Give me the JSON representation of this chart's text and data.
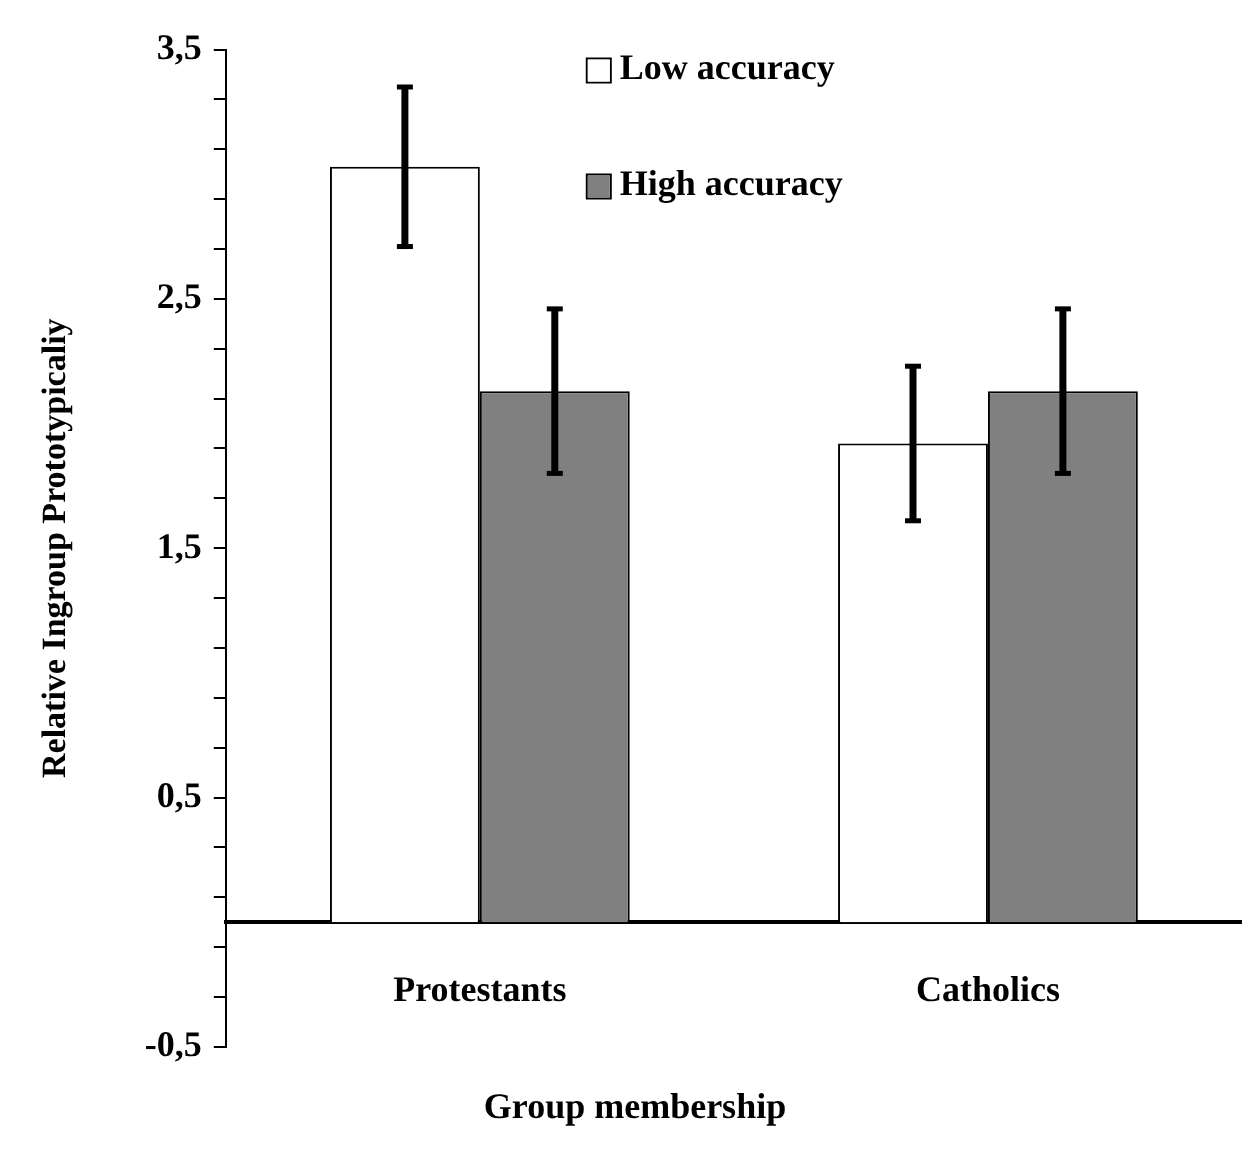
{
  "chart_data": {
    "type": "bar",
    "xlabel": "Group membership",
    "ylabel": "Relative Ingroup Prototypicaliy",
    "categories": [
      "Protestants",
      "Catholics"
    ],
    "series": [
      {
        "name": "Low accuracy",
        "color": "#ffffff",
        "values": [
          3.03,
          1.92
        ],
        "errors": [
          0.32,
          0.31
        ]
      },
      {
        "name": "High accuracy",
        "color": "#808080",
        "values": [
          2.13,
          2.13
        ],
        "errors": [
          0.33,
          0.33
        ]
      }
    ],
    "ylim": [
      -0.5,
      3.5
    ],
    "yticks": [
      {
        "value": -0.5,
        "label": "-0,5"
      },
      {
        "value": -0.3,
        "label": null
      },
      {
        "value": -0.1,
        "label": null
      },
      {
        "value": 0.1,
        "label": null
      },
      {
        "value": 0.3,
        "label": null
      },
      {
        "value": 0.5,
        "label": "0,5"
      },
      {
        "value": 0.7,
        "label": null
      },
      {
        "value": 0.9,
        "label": null
      },
      {
        "value": 1.1,
        "label": null
      },
      {
        "value": 1.3,
        "label": null
      },
      {
        "value": 1.5,
        "label": "1,5"
      },
      {
        "value": 1.7,
        "label": null
      },
      {
        "value": 1.9,
        "label": null
      },
      {
        "value": 2.1,
        "label": null
      },
      {
        "value": 2.3,
        "label": null
      },
      {
        "value": 2.5,
        "label": "2,5"
      },
      {
        "value": 2.7,
        "label": null
      },
      {
        "value": 2.9,
        "label": null
      },
      {
        "value": 3.1,
        "label": null
      },
      {
        "value": 3.3,
        "label": null
      },
      {
        "value": 3.5,
        "label": "3,5"
      }
    ],
    "grid": false,
    "legend": "top right"
  }
}
